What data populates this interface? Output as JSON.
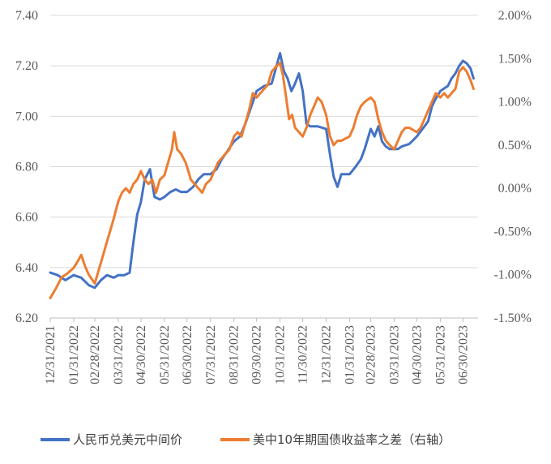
{
  "chart_data": {
    "type": "line",
    "title": "",
    "xlabel": "",
    "ylabel": "",
    "x_ticks": [
      "12/31/2021",
      "01/31/2022",
      "02/28/2022",
      "03/31/2022",
      "04/30/2022",
      "05/31/2022",
      "06/30/2022",
      "07/31/2022",
      "08/31/2022",
      "09/30/2022",
      "10/31/2022",
      "11/30/2022",
      "12/31/2022",
      "01/31/2023",
      "02/28/2023",
      "03/31/2023",
      "04/30/2023",
      "05/31/2023",
      "06/30/2023"
    ],
    "y_left": {
      "ticks": [
        "6.20",
        "6.40",
        "6.60",
        "6.80",
        "7.00",
        "7.20",
        "7.40"
      ],
      "range": [
        6.2,
        7.4
      ]
    },
    "y_right": {
      "ticks": [
        "-1.50%",
        "-1.00%",
        "-0.50%",
        "0.00%",
        "0.50%",
        "1.00%",
        "1.50%",
        "2.00%"
      ],
      "range": [
        -1.5,
        2.0
      ],
      "unit": "%"
    },
    "legend_position": "bottom",
    "series": [
      {
        "name": "人民币兑美元中间价",
        "axis": "left",
        "color": "#4472C4",
        "points": [
          [
            "12/31/2021",
            6.38
          ],
          [
            "01/10/2022",
            6.37
          ],
          [
            "01/20/2022",
            6.35
          ],
          [
            "01/31/2022",
            6.37
          ],
          [
            "02/10/2022",
            6.36
          ],
          [
            "02/20/2022",
            6.33
          ],
          [
            "02/28/2022",
            6.32
          ],
          [
            "03/08/2022",
            6.35
          ],
          [
            "03/16/2022",
            6.37
          ],
          [
            "03/25/2022",
            6.36
          ],
          [
            "03/31/2022",
            6.37
          ],
          [
            "04/08/2022",
            6.37
          ],
          [
            "04/15/2022",
            6.38
          ],
          [
            "04/20/2022",
            6.5
          ],
          [
            "04/25/2022",
            6.61
          ],
          [
            "04/30/2022",
            6.66
          ],
          [
            "05/05/2022",
            6.75
          ],
          [
            "05/12/2022",
            6.79
          ],
          [
            "05/18/2022",
            6.68
          ],
          [
            "05/25/2022",
            6.67
          ],
          [
            "05/31/2022",
            6.68
          ],
          [
            "06/08/2022",
            6.7
          ],
          [
            "06/15/2022",
            6.71
          ],
          [
            "06/22/2022",
            6.7
          ],
          [
            "06/30/2022",
            6.7
          ],
          [
            "07/08/2022",
            6.72
          ],
          [
            "07/15/2022",
            6.75
          ],
          [
            "07/22/2022",
            6.77
          ],
          [
            "07/31/2022",
            6.77
          ],
          [
            "08/08/2022",
            6.79
          ],
          [
            "08/15/2022",
            6.83
          ],
          [
            "08/22/2022",
            6.86
          ],
          [
            "08/31/2022",
            6.9
          ],
          [
            "09/08/2022",
            6.92
          ],
          [
            "09/15/2022",
            6.97
          ],
          [
            "09/22/2022",
            7.03
          ],
          [
            "09/30/2022",
            7.1
          ],
          [
            "10/10/2022",
            7.12
          ],
          [
            "10/20/2022",
            7.13
          ],
          [
            "10/31/2022",
            7.25
          ],
          [
            "11/05/2022",
            7.18
          ],
          [
            "11/10/2022",
            7.15
          ],
          [
            "11/15/2022",
            7.1
          ],
          [
            "11/20/2022",
            7.13
          ],
          [
            "11/25/2022",
            7.17
          ],
          [
            "11/30/2022",
            7.1
          ],
          [
            "12/05/2022",
            6.97
          ],
          [
            "12/10/2022",
            6.96
          ],
          [
            "12/20/2022",
            6.96
          ],
          [
            "12/31/2022",
            6.95
          ],
          [
            "01/05/2023",
            6.85
          ],
          [
            "01/10/2023",
            6.76
          ],
          [
            "01/15/2023",
            6.72
          ],
          [
            "01/20/2023",
            6.77
          ],
          [
            "01/31/2023",
            6.77
          ],
          [
            "02/08/2023",
            6.8
          ],
          [
            "02/15/2023",
            6.83
          ],
          [
            "02/20/2023",
            6.87
          ],
          [
            "02/28/2023",
            6.95
          ],
          [
            "03/05/2023",
            6.92
          ],
          [
            "03/10/2023",
            6.96
          ],
          [
            "03/15/2023",
            6.9
          ],
          [
            "03/20/2023",
            6.88
          ],
          [
            "03/25/2023",
            6.87
          ],
          [
            "03/31/2023",
            6.87
          ],
          [
            "04/05/2023",
            6.87
          ],
          [
            "04/10/2023",
            6.88
          ],
          [
            "04/20/2023",
            6.89
          ],
          [
            "04/30/2023",
            6.92
          ],
          [
            "05/05/2023",
            6.94
          ],
          [
            "05/10/2023",
            6.96
          ],
          [
            "05/15/2023",
            6.98
          ],
          [
            "05/20/2023",
            7.04
          ],
          [
            "05/25/2023",
            7.07
          ],
          [
            "05/31/2023",
            7.1
          ],
          [
            "06/05/2023",
            7.11
          ],
          [
            "06/10/2023",
            7.12
          ],
          [
            "06/15/2023",
            7.15
          ],
          [
            "06/20/2023",
            7.17
          ],
          [
            "06/25/2023",
            7.2
          ],
          [
            "06/30/2023",
            7.22
          ],
          [
            "07/05/2023",
            7.21
          ],
          [
            "07/10/2023",
            7.19
          ],
          [
            "07/14/2023",
            7.15
          ]
        ]
      },
      {
        "name": "美中10年期国债收益率之差（右轴）",
        "axis": "right",
        "color": "#ED7D31",
        "points": [
          [
            "12/31/2021",
            -1.27
          ],
          [
            "01/08/2022",
            -1.15
          ],
          [
            "01/15/2022",
            -1.03
          ],
          [
            "01/22/2022",
            -0.99
          ],
          [
            "01/31/2022",
            -0.92
          ],
          [
            "02/05/2022",
            -0.85
          ],
          [
            "02/10/2022",
            -0.77
          ],
          [
            "02/15/2022",
            -0.9
          ],
          [
            "02/20/2022",
            -1.0
          ],
          [
            "02/28/2022",
            -1.1
          ],
          [
            "03/05/2022",
            -0.95
          ],
          [
            "03/10/2022",
            -0.8
          ],
          [
            "03/15/2022",
            -0.65
          ],
          [
            "03/20/2022",
            -0.5
          ],
          [
            "03/25/2022",
            -0.35
          ],
          [
            "03/31/2022",
            -0.15
          ],
          [
            "04/05/2022",
            -0.05
          ],
          [
            "04/10/2022",
            0.0
          ],
          [
            "04/15/2022",
            -0.05
          ],
          [
            "04/20/2022",
            0.05
          ],
          [
            "04/25/2022",
            0.1
          ],
          [
            "04/30/2022",
            0.2
          ],
          [
            "05/05/2022",
            0.1
          ],
          [
            "05/10/2022",
            0.05
          ],
          [
            "05/15/2022",
            0.1
          ],
          [
            "05/20/2022",
            -0.05
          ],
          [
            "05/25/2022",
            0.1
          ],
          [
            "05/31/2022",
            0.15
          ],
          [
            "06/05/2022",
            0.3
          ],
          [
            "06/10/2022",
            0.45
          ],
          [
            "06/13/2022",
            0.65
          ],
          [
            "06/17/2022",
            0.45
          ],
          [
            "06/22/2022",
            0.4
          ],
          [
            "06/28/2022",
            0.3
          ],
          [
            "06/30/2022",
            0.25
          ],
          [
            "07/05/2022",
            0.1
          ],
          [
            "07/10/2022",
            0.05
          ],
          [
            "07/15/2022",
            0.0
          ],
          [
            "07/20/2022",
            -0.05
          ],
          [
            "07/25/2022",
            0.05
          ],
          [
            "07/31/2022",
            0.1
          ],
          [
            "08/05/2022",
            0.2
          ],
          [
            "08/10/2022",
            0.3
          ],
          [
            "08/15/2022",
            0.35
          ],
          [
            "08/20/2022",
            0.4
          ],
          [
            "08/25/2022",
            0.45
          ],
          [
            "08/31/2022",
            0.6
          ],
          [
            "09/05/2022",
            0.65
          ],
          [
            "09/10/2022",
            0.6
          ],
          [
            "09/15/2022",
            0.75
          ],
          [
            "09/20/2022",
            0.9
          ],
          [
            "09/25/2022",
            1.1
          ],
          [
            "09/30/2022",
            1.05
          ],
          [
            "10/05/2022",
            1.1
          ],
          [
            "10/10/2022",
            1.15
          ],
          [
            "10/15/2022",
            1.2
          ],
          [
            "10/20/2022",
            1.35
          ],
          [
            "10/25/2022",
            1.4
          ],
          [
            "10/31/2022",
            1.45
          ],
          [
            "11/04/2022",
            1.3
          ],
          [
            "11/08/2022",
            1.05
          ],
          [
            "11/12/2022",
            0.8
          ],
          [
            "11/16/2022",
            0.85
          ],
          [
            "11/20/2022",
            0.7
          ],
          [
            "11/25/2022",
            0.65
          ],
          [
            "11/30/2022",
            0.6
          ],
          [
            "12/05/2022",
            0.7
          ],
          [
            "12/10/2022",
            0.85
          ],
          [
            "12/15/2022",
            0.95
          ],
          [
            "12/20/2022",
            1.05
          ],
          [
            "12/25/2022",
            1.0
          ],
          [
            "12/31/2022",
            0.85
          ],
          [
            "01/05/2023",
            0.6
          ],
          [
            "01/10/2023",
            0.5
          ],
          [
            "01/15/2023",
            0.55
          ],
          [
            "01/20/2023",
            0.55
          ],
          [
            "01/31/2023",
            0.6
          ],
          [
            "02/05/2023",
            0.7
          ],
          [
            "02/10/2023",
            0.85
          ],
          [
            "02/15/2023",
            0.95
          ],
          [
            "02/20/2023",
            1.0
          ],
          [
            "02/28/2023",
            1.05
          ],
          [
            "03/05/2023",
            1.0
          ],
          [
            "03/10/2023",
            0.8
          ],
          [
            "03/15/2023",
            0.65
          ],
          [
            "03/20/2023",
            0.55
          ],
          [
            "03/25/2023",
            0.5
          ],
          [
            "03/31/2023",
            0.45
          ],
          [
            "04/05/2023",
            0.55
          ],
          [
            "04/10/2023",
            0.65
          ],
          [
            "04/15/2023",
            0.7
          ],
          [
            "04/20/2023",
            0.7
          ],
          [
            "04/30/2023",
            0.65
          ],
          [
            "05/05/2023",
            0.7
          ],
          [
            "05/10/2023",
            0.8
          ],
          [
            "05/15/2023",
            0.9
          ],
          [
            "05/20/2023",
            1.0
          ],
          [
            "05/25/2023",
            1.1
          ],
          [
            "05/31/2023",
            1.05
          ],
          [
            "06/05/2023",
            1.1
          ],
          [
            "06/10/2023",
            1.05
          ],
          [
            "06/15/2023",
            1.1
          ],
          [
            "06/20/2023",
            1.15
          ],
          [
            "06/25/2023",
            1.35
          ],
          [
            "06/30/2023",
            1.4
          ],
          [
            "07/05/2023",
            1.35
          ],
          [
            "07/10/2023",
            1.25
          ],
          [
            "07/14/2023",
            1.15
          ]
        ]
      }
    ]
  }
}
